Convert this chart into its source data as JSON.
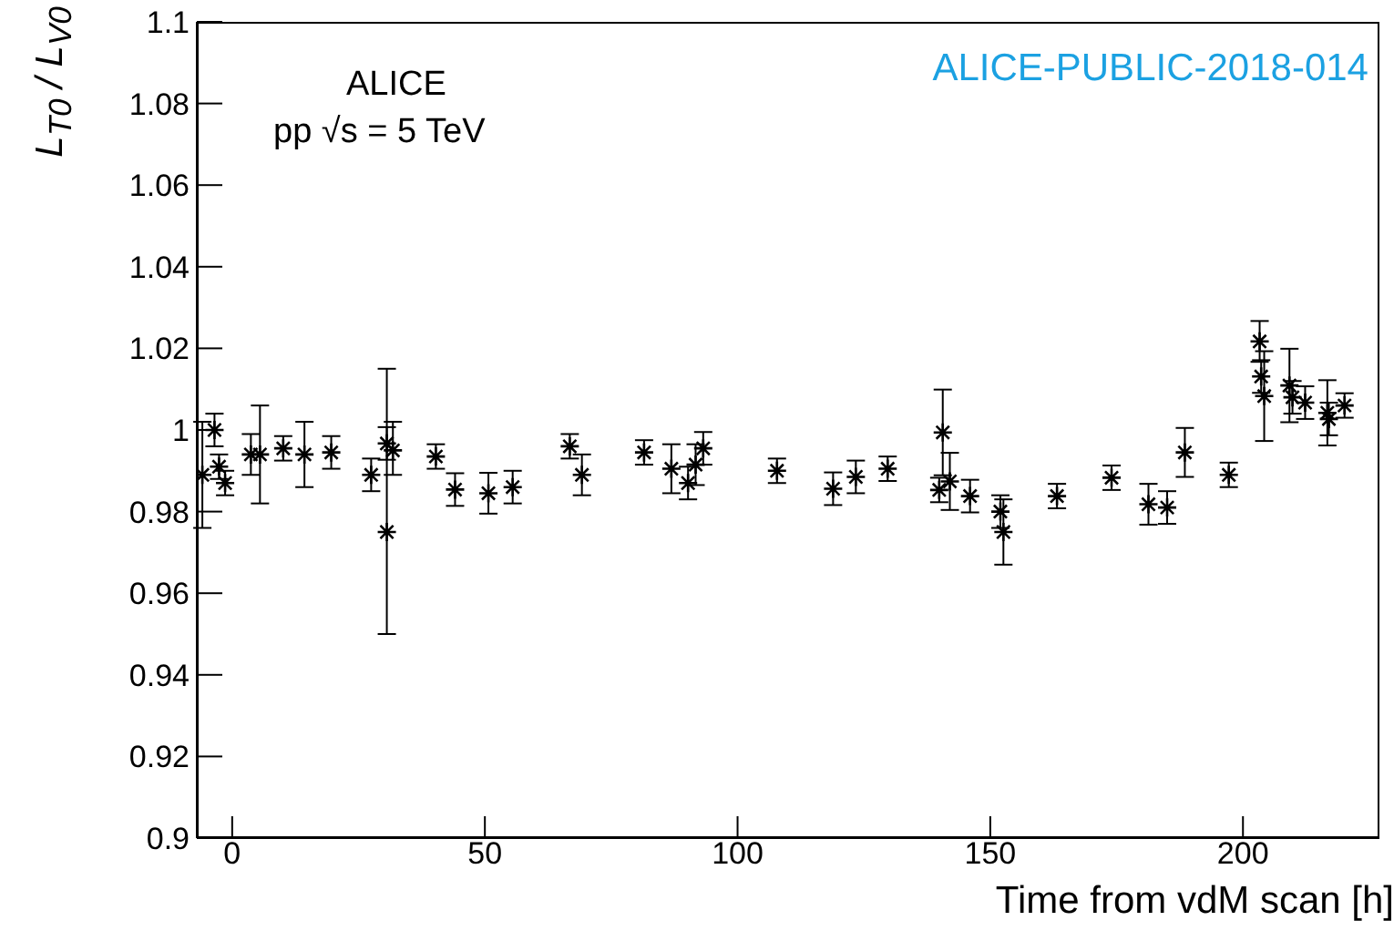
{
  "chart_data": {
    "type": "scatter",
    "xlabel": "Time from vdM scan [h]",
    "ylabel": "L$_{T0}$ / L$_{V0}$",
    "annotations": [
      "ALICE",
      "pp √s = 5 TeV",
      "ALICE-PUBLIC-2018-014"
    ],
    "marker": "cross",
    "grid": false,
    "xlim": [
      -7,
      227
    ],
    "xticks": [
      0,
      50,
      100,
      150,
      200
    ],
    "ylim": [
      0.9,
      1.1
    ],
    "yticks": [
      0.9,
      0.92,
      0.94,
      0.96,
      0.98,
      1,
      1.02,
      1.04,
      1.06,
      1.08,
      1.1
    ],
    "series": [
      {
        "color": "#000000",
        "x": [
          -5.9,
          -3.5,
          -2.6,
          -1.4,
          3.7,
          5.5,
          10.1,
          14.3,
          19.6,
          27.5,
          30.6,
          30.6,
          31.8,
          40.3,
          44.1,
          50.7,
          55.5,
          66.8,
          69.2,
          81.5,
          86.9,
          90.2,
          91.7,
          93.2,
          107.8,
          118.9,
          123.4,
          129.7,
          139.9,
          140.6,
          142.0,
          146.0,
          152.0,
          152.6,
          163.2,
          174.0,
          181.3,
          185.0,
          188.5,
          197.2,
          203.3,
          203.6,
          204.2,
          209.2,
          209.8,
          212.3,
          216.7,
          217.0,
          220.1
        ],
        "values": [
          0.989,
          1.0,
          0.991,
          0.987,
          0.994,
          0.994,
          0.9955,
          0.994,
          0.9945,
          0.989,
          0.9967,
          0.975,
          0.995,
          0.9935,
          0.9854,
          0.9845,
          0.986,
          0.996,
          0.989,
          0.9945,
          0.9905,
          0.987,
          0.9915,
          0.9955,
          0.99,
          0.9856,
          0.9885,
          0.9905,
          0.9853,
          0.9994,
          0.9874,
          0.9838,
          0.98,
          0.975,
          0.9838,
          0.9883,
          0.9818,
          0.981,
          0.9945,
          0.989,
          1.0217,
          1.0131,
          1.0083,
          1.0109,
          1.008,
          1.0067,
          1.0042,
          1.0027,
          1.006
        ],
        "errors": [
          0.013,
          0.004,
          0.003,
          0.003,
          0.005,
          0.012,
          0.003,
          0.008,
          0.004,
          0.004,
          0.004,
          [
            0.95,
            1.015
          ],
          [
            0.989,
            1.002
          ],
          0.003,
          0.004,
          0.005,
          0.004,
          0.003,
          0.005,
          0.003,
          0.006,
          0.004,
          0.005,
          0.004,
          0.003,
          0.004,
          0.004,
          0.003,
          0.003,
          0.0105,
          0.007,
          0.004,
          0.004,
          0.008,
          0.003,
          0.003,
          0.005,
          0.004,
          0.006,
          0.003,
          0.005,
          0.004,
          0.011,
          0.009,
          0.004,
          0.004,
          0.008,
          0.004,
          0.003
        ]
      }
    ]
  }
}
